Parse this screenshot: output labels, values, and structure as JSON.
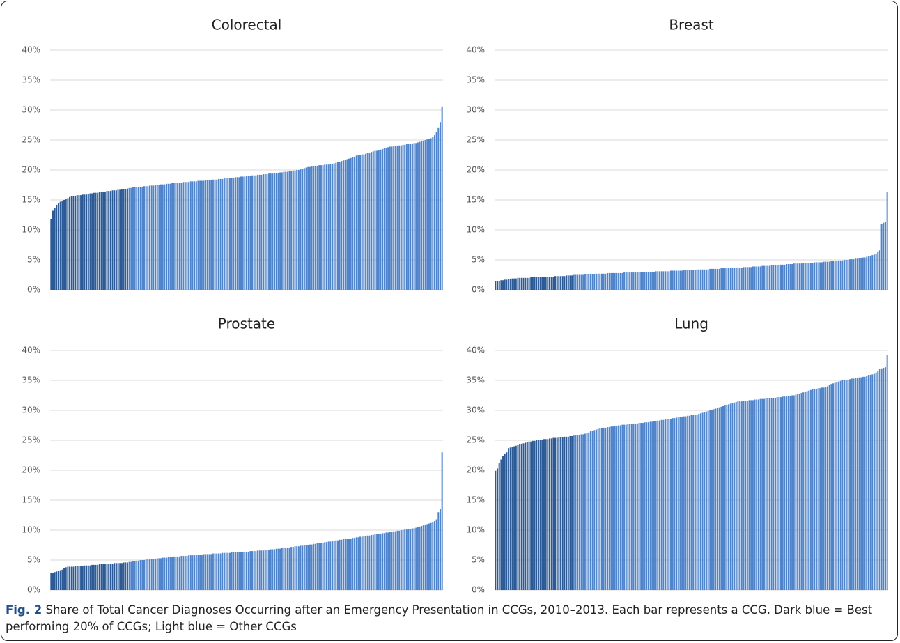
{
  "chart_data": [
    {
      "type": "bar",
      "title": "Colorectal",
      "color": "#4f84cb",
      "highlight_color": "#2c5a96",
      "highlight_count": 42,
      "grid": true,
      "ylim": [
        0,
        40
      ],
      "yticks": [
        {
          "value": 0,
          "label": "0%"
        },
        {
          "value": 5,
          "label": "5%"
        },
        {
          "value": 10,
          "label": "10%"
        },
        {
          "value": 15,
          "label": "15%"
        },
        {
          "value": 20,
          "label": "20%"
        },
        {
          "value": 25,
          "label": "25%"
        },
        {
          "value": 30,
          "label": "30%"
        },
        {
          "value": 35,
          "label": "35%"
        },
        {
          "value": 40,
          "label": "40%"
        }
      ],
      "values": [
        11.8,
        13.2,
        13.6,
        14.2,
        14.5,
        14.7,
        14.8,
        15.0,
        15.2,
        15.3,
        15.5,
        15.6,
        15.7,
        15.7,
        15.8,
        15.8,
        15.8,
        15.9,
        15.9,
        15.9,
        16.0,
        16.1,
        16.1,
        16.2,
        16.2,
        16.2,
        16.3,
        16.3,
        16.4,
        16.4,
        16.5,
        16.5,
        16.5,
        16.6,
        16.6,
        16.6,
        16.7,
        16.7,
        16.8,
        16.8,
        16.8,
        16.9,
        17.0,
        17.0,
        17.1,
        17.1,
        17.1,
        17.2,
        17.2,
        17.2,
        17.3,
        17.3,
        17.3,
        17.4,
        17.4,
        17.4,
        17.5,
        17.5,
        17.5,
        17.6,
        17.6,
        17.6,
        17.7,
        17.7,
        17.7,
        17.8,
        17.8,
        17.8,
        17.9,
        17.9,
        17.9,
        18.0,
        18.0,
        18.0,
        18.0,
        18.1,
        18.1,
        18.1,
        18.1,
        18.2,
        18.2,
        18.2,
        18.2,
        18.3,
        18.3,
        18.3,
        18.3,
        18.4,
        18.4,
        18.4,
        18.5,
        18.5,
        18.5,
        18.6,
        18.6,
        18.6,
        18.7,
        18.7,
        18.7,
        18.8,
        18.8,
        18.8,
        18.9,
        18.9,
        18.9,
        19.0,
        19.0,
        19.0,
        19.1,
        19.1,
        19.1,
        19.2,
        19.2,
        19.2,
        19.3,
        19.3,
        19.3,
        19.4,
        19.4,
        19.4,
        19.5,
        19.5,
        19.5,
        19.6,
        19.6,
        19.7,
        19.7,
        19.7,
        19.8,
        19.8,
        19.9,
        19.9,
        20.0,
        20.0,
        20.1,
        20.2,
        20.3,
        20.4,
        20.5,
        20.5,
        20.6,
        20.6,
        20.7,
        20.7,
        20.8,
        20.8,
        20.8,
        20.9,
        20.9,
        20.9,
        21.0,
        21.0,
        21.1,
        21.2,
        21.3,
        21.4,
        21.5,
        21.6,
        21.7,
        21.8,
        21.9,
        22.0,
        22.1,
        22.2,
        22.4,
        22.5,
        22.5,
        22.6,
        22.6,
        22.7,
        22.8,
        22.9,
        23.0,
        23.1,
        23.2,
        23.2,
        23.3,
        23.4,
        23.5,
        23.6,
        23.7,
        23.8,
        23.9,
        23.9,
        24.0,
        24.0,
        24.0,
        24.1,
        24.1,
        24.2,
        24.2,
        24.3,
        24.3,
        24.4,
        24.4,
        24.5,
        24.5,
        24.6,
        24.7,
        24.8,
        24.9,
        25.0,
        25.1,
        25.2,
        25.3,
        25.5,
        25.8,
        26.3,
        27.0,
        28.0,
        30.6
      ]
    },
    {
      "type": "bar",
      "title": "Breast",
      "color": "#4f84cb",
      "highlight_color": "#2c5a96",
      "highlight_count": 42,
      "grid": true,
      "ylim": [
        0,
        40
      ],
      "yticks": [
        {
          "value": 0,
          "label": "0%"
        },
        {
          "value": 5,
          "label": "5%"
        },
        {
          "value": 10,
          "label": "10%"
        },
        {
          "value": 15,
          "label": "15%"
        },
        {
          "value": 20,
          "label": "20%"
        },
        {
          "value": 25,
          "label": "25%"
        },
        {
          "value": 30,
          "label": "30%"
        },
        {
          "value": 35,
          "label": "35%"
        },
        {
          "value": 40,
          "label": "40%"
        }
      ],
      "values": [
        1.4,
        1.5,
        1.5,
        1.6,
        1.6,
        1.7,
        1.7,
        1.8,
        1.8,
        1.9,
        1.9,
        1.9,
        2.0,
        2.0,
        2.0,
        2.0,
        2.0,
        2.0,
        2.0,
        2.1,
        2.1,
        2.1,
        2.1,
        2.1,
        2.1,
        2.1,
        2.2,
        2.2,
        2.2,
        2.2,
        2.2,
        2.2,
        2.3,
        2.3,
        2.3,
        2.3,
        2.3,
        2.3,
        2.4,
        2.4,
        2.4,
        2.4,
        2.5,
        2.5,
        2.5,
        2.5,
        2.5,
        2.5,
        2.6,
        2.6,
        2.6,
        2.6,
        2.6,
        2.6,
        2.7,
        2.7,
        2.7,
        2.7,
        2.7,
        2.7,
        2.8,
        2.8,
        2.8,
        2.8,
        2.8,
        2.8,
        2.8,
        2.8,
        2.8,
        2.9,
        2.9,
        2.9,
        2.9,
        2.9,
        2.9,
        2.9,
        2.9,
        3.0,
        3.0,
        3.0,
        3.0,
        3.0,
        3.0,
        3.0,
        3.0,
        3.0,
        3.1,
        3.1,
        3.1,
        3.1,
        3.1,
        3.1,
        3.1,
        3.1,
        3.2,
        3.2,
        3.2,
        3.2,
        3.2,
        3.2,
        3.2,
        3.3,
        3.3,
        3.3,
        3.3,
        3.3,
        3.3,
        3.3,
        3.4,
        3.4,
        3.4,
        3.4,
        3.4,
        3.4,
        3.4,
        3.5,
        3.5,
        3.5,
        3.5,
        3.5,
        3.5,
        3.6,
        3.6,
        3.6,
        3.6,
        3.6,
        3.6,
        3.7,
        3.7,
        3.7,
        3.7,
        3.7,
        3.7,
        3.8,
        3.8,
        3.8,
        3.8,
        3.8,
        3.9,
        3.9,
        3.9,
        3.9,
        3.9,
        4.0,
        4.0,
        4.0,
        4.0,
        4.0,
        4.1,
        4.1,
        4.1,
        4.1,
        4.2,
        4.2,
        4.2,
        4.2,
        4.3,
        4.3,
        4.3,
        4.3,
        4.4,
        4.4,
        4.4,
        4.4,
        4.4,
        4.5,
        4.5,
        4.5,
        4.5,
        4.5,
        4.5,
        4.6,
        4.6,
        4.6,
        4.6,
        4.6,
        4.7,
        4.7,
        4.7,
        4.7,
        4.8,
        4.8,
        4.8,
        4.8,
        4.9,
        4.9,
        4.9,
        5.0,
        5.0,
        5.0,
        5.1,
        5.1,
        5.1,
        5.2,
        5.2,
        5.3,
        5.3,
        5.4,
        5.4,
        5.5,
        5.6,
        5.7,
        5.8,
        5.9,
        6.0,
        6.3,
        6.6,
        11.0,
        11.2,
        11.3,
        16.3
      ]
    },
    {
      "type": "bar",
      "title": "Prostate",
      "color": "#4f84cb",
      "highlight_color": "#2c5a96",
      "highlight_count": 42,
      "grid": true,
      "ylim": [
        0,
        40
      ],
      "yticks": [
        {
          "value": 0,
          "label": "0%"
        },
        {
          "value": 5,
          "label": "5%"
        },
        {
          "value": 10,
          "label": "10%"
        },
        {
          "value": 15,
          "label": "15%"
        },
        {
          "value": 20,
          "label": "20%"
        },
        {
          "value": 25,
          "label": "25%"
        },
        {
          "value": 30,
          "label": "30%"
        },
        {
          "value": 35,
          "label": "35%"
        },
        {
          "value": 40,
          "label": "40%"
        }
      ],
      "values": [
        2.8,
        2.9,
        3.0,
        3.1,
        3.2,
        3.3,
        3.4,
        3.7,
        3.8,
        3.9,
        3.9,
        3.9,
        3.9,
        4.0,
        4.0,
        4.0,
        4.0,
        4.0,
        4.1,
        4.1,
        4.1,
        4.1,
        4.2,
        4.2,
        4.2,
        4.2,
        4.3,
        4.3,
        4.3,
        4.3,
        4.4,
        4.4,
        4.4,
        4.4,
        4.5,
        4.5,
        4.5,
        4.5,
        4.5,
        4.6,
        4.6,
        4.6,
        4.7,
        4.7,
        4.8,
        4.8,
        4.9,
        4.9,
        5.0,
        5.0,
        5.0,
        5.1,
        5.1,
        5.1,
        5.2,
        5.2,
        5.2,
        5.3,
        5.3,
        5.3,
        5.4,
        5.4,
        5.4,
        5.5,
        5.5,
        5.5,
        5.6,
        5.6,
        5.6,
        5.6,
        5.7,
        5.7,
        5.7,
        5.7,
        5.8,
        5.8,
        5.8,
        5.8,
        5.9,
        5.9,
        5.9,
        5.9,
        6.0,
        6.0,
        6.0,
        6.0,
        6.0,
        6.1,
        6.1,
        6.1,
        6.1,
        6.1,
        6.2,
        6.2,
        6.2,
        6.2,
        6.2,
        6.3,
        6.3,
        6.3,
        6.3,
        6.3,
        6.4,
        6.4,
        6.4,
        6.4,
        6.4,
        6.5,
        6.5,
        6.5,
        6.5,
        6.6,
        6.6,
        6.6,
        6.6,
        6.7,
        6.7,
        6.7,
        6.8,
        6.8,
        6.8,
        6.9,
        6.9,
        6.9,
        7.0,
        7.0,
        7.0,
        7.1,
        7.1,
        7.2,
        7.2,
        7.3,
        7.3,
        7.3,
        7.4,
        7.4,
        7.5,
        7.5,
        7.5,
        7.6,
        7.6,
        7.7,
        7.7,
        7.8,
        7.8,
        7.9,
        7.9,
        8.0,
        8.0,
        8.1,
        8.1,
        8.2,
        8.2,
        8.3,
        8.3,
        8.4,
        8.4,
        8.5,
        8.5,
        8.5,
        8.6,
        8.6,
        8.7,
        8.7,
        8.8,
        8.8,
        8.9,
        8.9,
        9.0,
        9.0,
        9.1,
        9.1,
        9.2,
        9.2,
        9.3,
        9.3,
        9.4,
        9.4,
        9.5,
        9.5,
        9.6,
        9.6,
        9.7,
        9.7,
        9.8,
        9.8,
        9.9,
        9.9,
        10.0,
        10.0,
        10.1,
        10.1,
        10.2,
        10.2,
        10.3,
        10.3,
        10.4,
        10.5,
        10.6,
        10.7,
        10.8,
        10.9,
        11.0,
        11.1,
        11.2,
        11.3,
        11.5,
        11.8,
        13.0,
        13.5,
        23.0
      ]
    },
    {
      "type": "bar",
      "title": "Lung",
      "color": "#4f84cb",
      "highlight_color": "#2c5a96",
      "highlight_count": 42,
      "grid": true,
      "ylim": [
        0,
        40
      ],
      "yticks": [
        {
          "value": 0,
          "label": "0%"
        },
        {
          "value": 5,
          "label": "5%"
        },
        {
          "value": 10,
          "label": "10%"
        },
        {
          "value": 15,
          "label": "15%"
        },
        {
          "value": 20,
          "label": "20%"
        },
        {
          "value": 25,
          "label": "25%"
        },
        {
          "value": 30,
          "label": "30%"
        },
        {
          "value": 35,
          "label": "35%"
        },
        {
          "value": 40,
          "label": "40%"
        }
      ],
      "values": [
        19.9,
        20.3,
        21.2,
        21.8,
        22.4,
        22.8,
        23.0,
        23.7,
        23.8,
        23.9,
        24.0,
        24.1,
        24.2,
        24.3,
        24.4,
        24.5,
        24.6,
        24.7,
        24.8,
        24.8,
        24.9,
        24.9,
        25.0,
        25.0,
        25.1,
        25.1,
        25.2,
        25.2,
        25.2,
        25.3,
        25.3,
        25.4,
        25.4,
        25.4,
        25.5,
        25.5,
        25.5,
        25.6,
        25.6,
        25.6,
        25.7,
        25.7,
        25.8,
        25.8,
        25.9,
        25.9,
        26.0,
        26.0,
        26.1,
        26.2,
        26.3,
        26.5,
        26.6,
        26.7,
        26.8,
        26.9,
        27.0,
        27.0,
        27.1,
        27.1,
        27.2,
        27.2,
        27.3,
        27.3,
        27.4,
        27.4,
        27.5,
        27.5,
        27.6,
        27.6,
        27.6,
        27.7,
        27.7,
        27.7,
        27.8,
        27.8,
        27.8,
        27.9,
        27.9,
        27.9,
        28.0,
        28.0,
        28.0,
        28.1,
        28.1,
        28.2,
        28.2,
        28.3,
        28.3,
        28.4,
        28.4,
        28.5,
        28.5,
        28.6,
        28.6,
        28.7,
        28.7,
        28.8,
        28.8,
        28.9,
        28.9,
        29.0,
        29.0,
        29.1,
        29.1,
        29.2,
        29.2,
        29.3,
        29.3,
        29.4,
        29.5,
        29.6,
        29.7,
        29.8,
        29.9,
        30.0,
        30.1,
        30.2,
        30.3,
        30.4,
        30.5,
        30.6,
        30.7,
        30.8,
        30.9,
        31.0,
        31.1,
        31.2,
        31.3,
        31.4,
        31.5,
        31.5,
        31.5,
        31.6,
        31.6,
        31.6,
        31.7,
        31.7,
        31.7,
        31.8,
        31.8,
        31.8,
        31.9,
        31.9,
        31.9,
        32.0,
        32.0,
        32.0,
        32.1,
        32.1,
        32.1,
        32.2,
        32.2,
        32.2,
        32.3,
        32.3,
        32.3,
        32.4,
        32.4,
        32.5,
        32.5,
        32.6,
        32.7,
        32.8,
        32.9,
        33.0,
        33.1,
        33.2,
        33.3,
        33.4,
        33.5,
        33.6,
        33.6,
        33.7,
        33.7,
        33.8,
        33.8,
        33.9,
        34.0,
        34.2,
        34.4,
        34.5,
        34.6,
        34.7,
        34.8,
        34.9,
        35.0,
        35.0,
        35.1,
        35.1,
        35.2,
        35.3,
        35.3,
        35.4,
        35.4,
        35.5,
        35.5,
        35.6,
        35.6,
        35.7,
        35.8,
        35.9,
        36.0,
        36.1,
        36.3,
        36.5,
        36.9,
        37.0,
        37.1,
        37.2,
        39.3
      ]
    }
  ],
  "caption": {
    "label": "Fig. 2",
    "text": "Share of Total Cancer Diagnoses Occurring after an Emergency Presentation in CCGs, 2010–2013. Each bar represents a CCG. Dark blue = Best performing 20% of CCGs; Light blue = Other CCGs"
  }
}
